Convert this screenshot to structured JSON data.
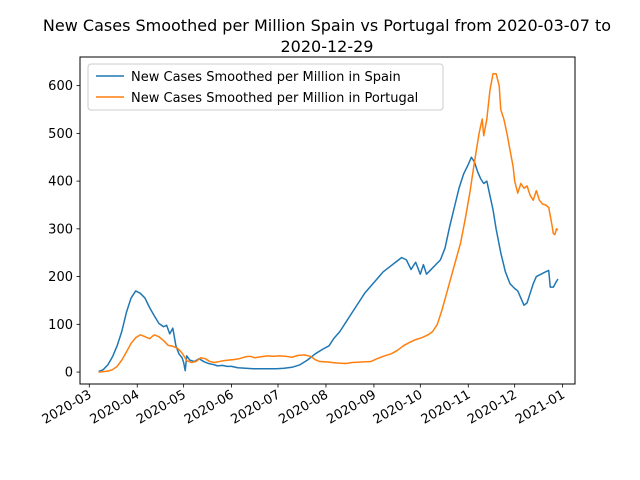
{
  "chart_data": {
    "type": "line",
    "title_line1": "New Cases Smoothed per Million Spain vs Portugal from 2020-03-07 to",
    "title_line2": "2020-12-29",
    "xlabel": "",
    "ylabel": "",
    "x_range": [
      "2020-02-24",
      "2021-01-09"
    ],
    "ylim": [
      -25,
      660
    ],
    "yticks": [
      0,
      100,
      200,
      300,
      400,
      500,
      600
    ],
    "xticks": [
      "2020-03",
      "2020-04",
      "2020-05",
      "2020-06",
      "2020-07",
      "2020-08",
      "2020-09",
      "2020-10",
      "2020-11",
      "2020-12",
      "2021-01"
    ],
    "grid": false,
    "legend_position": "upper left",
    "series": [
      {
        "name": "New Cases Smoothed per Million in Spain",
        "color": "#1f77b4",
        "points": [
          [
            "2020-03-07",
            1
          ],
          [
            "2020-03-10",
            5
          ],
          [
            "2020-03-13",
            15
          ],
          [
            "2020-03-16",
            32
          ],
          [
            "2020-03-19",
            55
          ],
          [
            "2020-03-22",
            85
          ],
          [
            "2020-03-25",
            125
          ],
          [
            "2020-03-28",
            155
          ],
          [
            "2020-03-31",
            170
          ],
          [
            "2020-04-03",
            165
          ],
          [
            "2020-04-06",
            155
          ],
          [
            "2020-04-09",
            135
          ],
          [
            "2020-04-12",
            118
          ],
          [
            "2020-04-15",
            102
          ],
          [
            "2020-04-18",
            95
          ],
          [
            "2020-04-20",
            98
          ],
          [
            "2020-04-22",
            80
          ],
          [
            "2020-04-24",
            92
          ],
          [
            "2020-04-26",
            55
          ],
          [
            "2020-04-28",
            38
          ],
          [
            "2020-04-30",
            30
          ],
          [
            "2020-05-01",
            20
          ],
          [
            "2020-05-02",
            3
          ],
          [
            "2020-05-03",
            34
          ],
          [
            "2020-05-05",
            25
          ],
          [
            "2020-05-08",
            22
          ],
          [
            "2020-05-11",
            28
          ],
          [
            "2020-05-14",
            22
          ],
          [
            "2020-05-17",
            18
          ],
          [
            "2020-05-20",
            16
          ],
          [
            "2020-05-23",
            13
          ],
          [
            "2020-05-26",
            14
          ],
          [
            "2020-05-29",
            12
          ],
          [
            "2020-06-01",
            12
          ],
          [
            "2020-06-05",
            9
          ],
          [
            "2020-06-10",
            8
          ],
          [
            "2020-06-15",
            7
          ],
          [
            "2020-06-20",
            7
          ],
          [
            "2020-06-25",
            7
          ],
          [
            "2020-06-30",
            7
          ],
          [
            "2020-07-05",
            8
          ],
          [
            "2020-07-10",
            10
          ],
          [
            "2020-07-15",
            15
          ],
          [
            "2020-07-20",
            25
          ],
          [
            "2020-07-25",
            38
          ],
          [
            "2020-07-30",
            48
          ],
          [
            "2020-08-03",
            55
          ],
          [
            "2020-08-06",
            70
          ],
          [
            "2020-08-10",
            85
          ],
          [
            "2020-08-14",
            105
          ],
          [
            "2020-08-18",
            125
          ],
          [
            "2020-08-22",
            145
          ],
          [
            "2020-08-26",
            165
          ],
          [
            "2020-08-30",
            180
          ],
          [
            "2020-09-03",
            195
          ],
          [
            "2020-09-07",
            210
          ],
          [
            "2020-09-11",
            220
          ],
          [
            "2020-09-15",
            230
          ],
          [
            "2020-09-19",
            240
          ],
          [
            "2020-09-22",
            235
          ],
          [
            "2020-09-25",
            215
          ],
          [
            "2020-09-28",
            230
          ],
          [
            "2020-10-01",
            205
          ],
          [
            "2020-10-03",
            225
          ],
          [
            "2020-10-05",
            205
          ],
          [
            "2020-10-08",
            215
          ],
          [
            "2020-10-11",
            225
          ],
          [
            "2020-10-14",
            235
          ],
          [
            "2020-10-17",
            260
          ],
          [
            "2020-10-20",
            305
          ],
          [
            "2020-10-23",
            345
          ],
          [
            "2020-10-26",
            385
          ],
          [
            "2020-10-29",
            415
          ],
          [
            "2020-11-01",
            435
          ],
          [
            "2020-11-03",
            450
          ],
          [
            "2020-11-05",
            440
          ],
          [
            "2020-11-07",
            420
          ],
          [
            "2020-11-09",
            405
          ],
          [
            "2020-11-11",
            395
          ],
          [
            "2020-11-13",
            400
          ],
          [
            "2020-11-15",
            370
          ],
          [
            "2020-11-17",
            340
          ],
          [
            "2020-11-19",
            300
          ],
          [
            "2020-11-22",
            250
          ],
          [
            "2020-11-25",
            210
          ],
          [
            "2020-11-28",
            185
          ],
          [
            "2020-12-01",
            175
          ],
          [
            "2020-12-03",
            170
          ],
          [
            "2020-12-05",
            155
          ],
          [
            "2020-12-07",
            140
          ],
          [
            "2020-12-09",
            145
          ],
          [
            "2020-12-11",
            165
          ],
          [
            "2020-12-13",
            185
          ],
          [
            "2020-12-15",
            200
          ],
          [
            "2020-12-18",
            205
          ],
          [
            "2020-12-21",
            210
          ],
          [
            "2020-12-23",
            213
          ],
          [
            "2020-12-24",
            178
          ],
          [
            "2020-12-26",
            178
          ],
          [
            "2020-12-28",
            190
          ],
          [
            "2020-12-29",
            195
          ]
        ]
      },
      {
        "name": "New Cases Smoothed per Million in Portugal",
        "color": "#ff7f0e",
        "points": [
          [
            "2020-03-07",
            0
          ],
          [
            "2020-03-10",
            1
          ],
          [
            "2020-03-13",
            2
          ],
          [
            "2020-03-16",
            5
          ],
          [
            "2020-03-19",
            12
          ],
          [
            "2020-03-22",
            25
          ],
          [
            "2020-03-25",
            42
          ],
          [
            "2020-03-28",
            60
          ],
          [
            "2020-03-31",
            72
          ],
          [
            "2020-04-03",
            78
          ],
          [
            "2020-04-06",
            74
          ],
          [
            "2020-04-09",
            70
          ],
          [
            "2020-04-12",
            78
          ],
          [
            "2020-04-15",
            74
          ],
          [
            "2020-04-18",
            66
          ],
          [
            "2020-04-21",
            56
          ],
          [
            "2020-04-24",
            54
          ],
          [
            "2020-04-27",
            50
          ],
          [
            "2020-04-30",
            40
          ],
          [
            "2020-05-03",
            24
          ],
          [
            "2020-05-06",
            20
          ],
          [
            "2020-05-09",
            22
          ],
          [
            "2020-05-12",
            30
          ],
          [
            "2020-05-15",
            28
          ],
          [
            "2020-05-18",
            22
          ],
          [
            "2020-05-21",
            20
          ],
          [
            "2020-05-24",
            22
          ],
          [
            "2020-05-27",
            24
          ],
          [
            "2020-05-30",
            25
          ],
          [
            "2020-06-02",
            26
          ],
          [
            "2020-06-06",
            28
          ],
          [
            "2020-06-10",
            32
          ],
          [
            "2020-06-13",
            33
          ],
          [
            "2020-06-16",
            30
          ],
          [
            "2020-06-20",
            32
          ],
          [
            "2020-06-24",
            34
          ],
          [
            "2020-06-28",
            33
          ],
          [
            "2020-07-02",
            34
          ],
          [
            "2020-07-06",
            33
          ],
          [
            "2020-07-10",
            31
          ],
          [
            "2020-07-14",
            35
          ],
          [
            "2020-07-18",
            36
          ],
          [
            "2020-07-22",
            33
          ],
          [
            "2020-07-25",
            26
          ],
          [
            "2020-07-28",
            22
          ],
          [
            "2020-08-02",
            21
          ],
          [
            "2020-08-08",
            19
          ],
          [
            "2020-08-14",
            18
          ],
          [
            "2020-08-18",
            20
          ],
          [
            "2020-08-24",
            21
          ],
          [
            "2020-08-30",
            22
          ],
          [
            "2020-09-03",
            28
          ],
          [
            "2020-09-08",
            34
          ],
          [
            "2020-09-12",
            38
          ],
          [
            "2020-09-16",
            45
          ],
          [
            "2020-09-20",
            55
          ],
          [
            "2020-09-24",
            62
          ],
          [
            "2020-09-28",
            68
          ],
          [
            "2020-10-02",
            72
          ],
          [
            "2020-10-06",
            78
          ],
          [
            "2020-10-09",
            85
          ],
          [
            "2020-10-12",
            100
          ],
          [
            "2020-10-15",
            130
          ],
          [
            "2020-10-18",
            165
          ],
          [
            "2020-10-21",
            200
          ],
          [
            "2020-10-24",
            235
          ],
          [
            "2020-10-27",
            270
          ],
          [
            "2020-10-30",
            320
          ],
          [
            "2020-11-02",
            375
          ],
          [
            "2020-11-05",
            440
          ],
          [
            "2020-11-08",
            500
          ],
          [
            "2020-11-10",
            530
          ],
          [
            "2020-11-11",
            495
          ],
          [
            "2020-11-13",
            530
          ],
          [
            "2020-11-15",
            590
          ],
          [
            "2020-11-17",
            625
          ],
          [
            "2020-11-19",
            625
          ],
          [
            "2020-11-21",
            600
          ],
          [
            "2020-11-22",
            550
          ],
          [
            "2020-11-24",
            530
          ],
          [
            "2020-11-26",
            500
          ],
          [
            "2020-11-28",
            465
          ],
          [
            "2020-11-30",
            430
          ],
          [
            "2020-12-01",
            400
          ],
          [
            "2020-12-03",
            375
          ],
          [
            "2020-12-05",
            395
          ],
          [
            "2020-12-07",
            385
          ],
          [
            "2020-12-09",
            390
          ],
          [
            "2020-12-11",
            370
          ],
          [
            "2020-12-13",
            360
          ],
          [
            "2020-12-15",
            380
          ],
          [
            "2020-12-17",
            360
          ],
          [
            "2020-12-19",
            352
          ],
          [
            "2020-12-21",
            350
          ],
          [
            "2020-12-23",
            345
          ],
          [
            "2020-12-25",
            310
          ],
          [
            "2020-12-26",
            290
          ],
          [
            "2020-12-27",
            288
          ],
          [
            "2020-12-28",
            300
          ],
          [
            "2020-12-29",
            298
          ]
        ]
      }
    ]
  }
}
